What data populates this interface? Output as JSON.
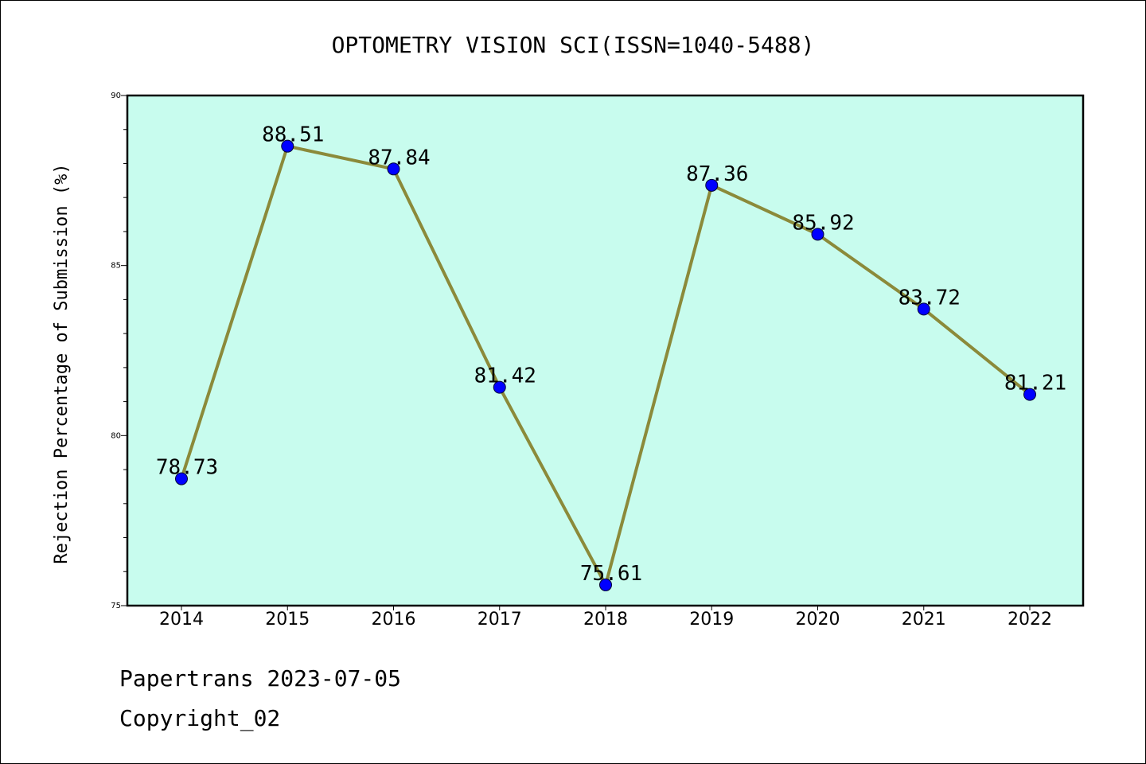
{
  "chart_data": {
    "type": "line",
    "title": "OPTOMETRY VISION SCI(ISSN=1040-5488)",
    "xlabel": "",
    "ylabel": "Rejection Percentage of Submission (%)",
    "categories": [
      "2014",
      "2015",
      "2016",
      "2017",
      "2018",
      "2019",
      "2020",
      "2021",
      "2022"
    ],
    "series": [
      {
        "values": [
          78.73,
          88.51,
          87.84,
          81.42,
          75.61,
          87.36,
          85.92,
          83.72,
          81.21
        ],
        "labels": [
          "78.73",
          "88.51",
          "87.84",
          "81.42",
          "75.61",
          "87.36",
          "85.92",
          "83.72",
          "81.21"
        ]
      }
    ],
    "ylim": [
      75,
      90
    ],
    "yticks": [
      "75",
      "80",
      "85",
      "90"
    ],
    "grid": false,
    "colors": {
      "plot_background": "#c8fcee",
      "line": "#8b8a3a",
      "marker": "#0000ff"
    }
  },
  "footer": {
    "line1": "Papertrans 2023-07-05",
    "line2": "Copyright_02"
  }
}
